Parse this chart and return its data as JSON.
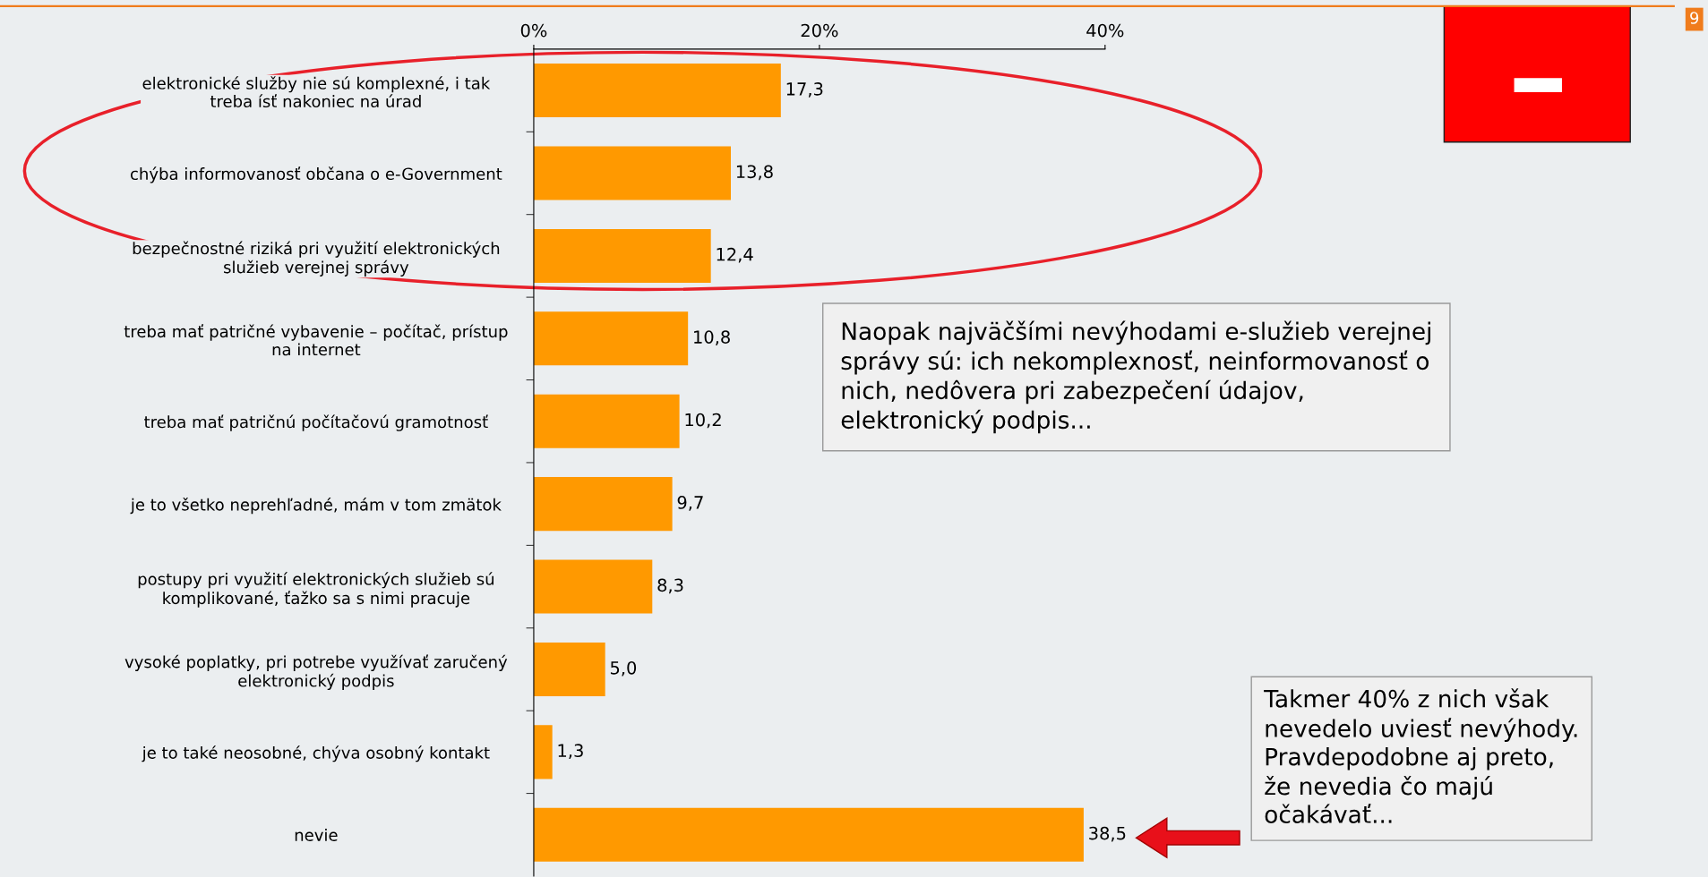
{
  "chart_data": {
    "type": "bar",
    "orientation": "horizontal",
    "categories": [
      "elektronické služby nie sú komplexné, i tak treba ísť nakoniec na úrad",
      "chýba informovanosť občana o e-Government",
      "bezpečnostné riziká pri využití elektronických služieb verejnej správy",
      "treba mať patričné vybavenie – počítač, prístup na internet",
      "treba mať patričnú počítačovú gramotnosť",
      "je to všetko neprehľadné, mám v tom zmätok",
      "postupy pri využití elektronických služieb sú komplikované, ťažko sa s nimi pracuje",
      "vysoké poplatky, pri potrebe využívať zaručený elektronický podpis",
      "je to také neosobné, chýva osobný kontakt",
      "nevie"
    ],
    "values": [
      17.3,
      13.8,
      12.4,
      10.8,
      10.2,
      9.7,
      8.3,
      5.0,
      1.3,
      38.5
    ],
    "value_labels": [
      "17,3",
      "13,8",
      "12,4",
      "10,8",
      "10,2",
      "9,7",
      "8,3",
      "5,0",
      "1,3",
      "38,5"
    ],
    "color": "#ff9900",
    "xlim": [
      0,
      40
    ],
    "xticks": [
      {
        "value": 0,
        "label": "0%"
      },
      {
        "value": 20,
        "label": "20%"
      },
      {
        "value": 40,
        "label": "40%"
      }
    ],
    "grid": false,
    "legend": false,
    "annotations": [
      "Naopak najväčšími nevýhodami e-služieb verejnej správy sú: ich nekomplexnosť, neinformovanosť o nich, nedôvera pri zabezpečení údajov, elektronický podpis...",
      "Takmer 40% z nich však nevedelo uviesť nevýhody. Pravdepodobne aj preto, že nevedia čo majú očakávať...",
      "9"
    ]
  }
}
